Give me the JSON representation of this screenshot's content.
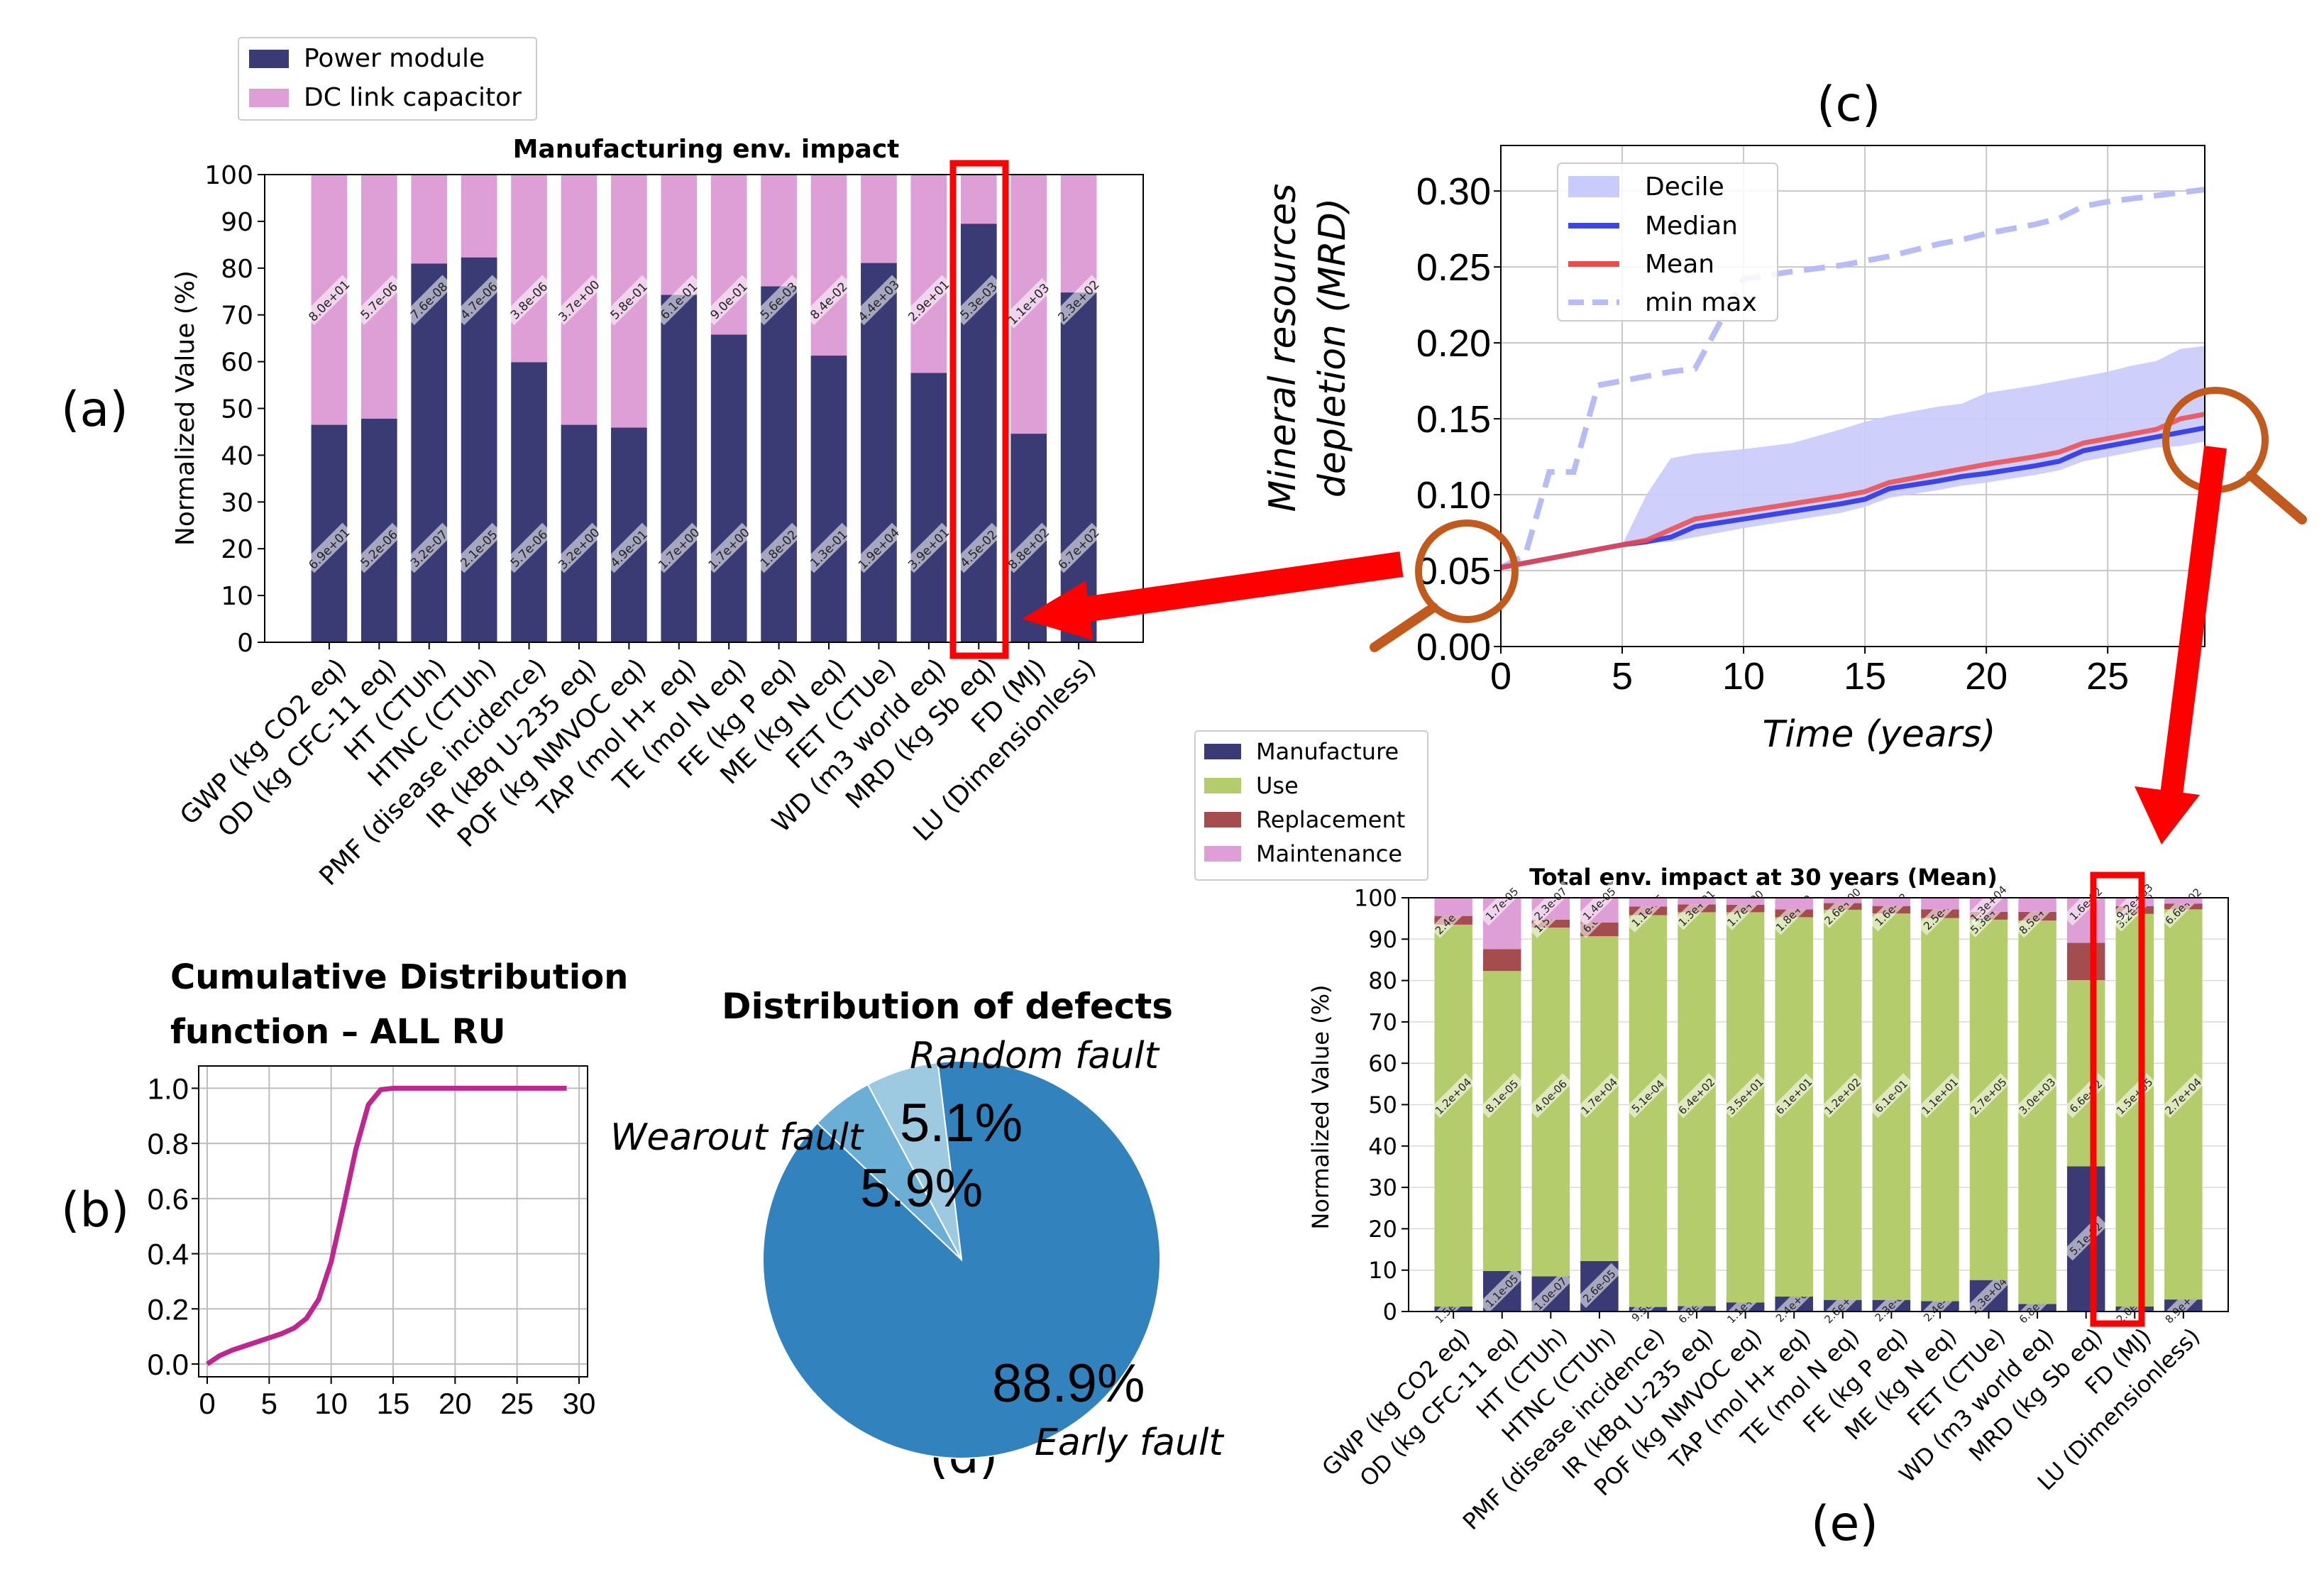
{
  "panel_labels": [
    "(a)",
    "(b)",
    "(c)",
    "(d)",
    "(e)"
  ],
  "colors": {
    "manufacture": "#3a3b74",
    "use": "#b5cc6c",
    "replacement": "#a44d4f",
    "maintenance": "#de9fd6",
    "decile": "#c9cbfb",
    "median": "#3d45e8",
    "mean": "#ef4a4a",
    "minmax": "#b8bcf6",
    "cdf": "#c02690",
    "pie_main": "#3282bd",
    "pie_second": "#6baed6",
    "pie_third": "#9ecae1",
    "highlight": "#ff0000",
    "magnifier": "#c25a1d"
  },
  "chart_data": [
    {
      "id": "a",
      "type": "bar",
      "stacked": true,
      "title": "Manufacturing env. impact",
      "ylabel": "Normalized Value (%)",
      "ylim": [
        0,
        100
      ],
      "yticks": [
        "0",
        "10",
        "20",
        "30",
        "40",
        "50",
        "60",
        "70",
        "80",
        "90",
        "100"
      ],
      "legend_position": "top-left",
      "categories": [
        "GWP (kg CO2 eq)",
        "OD (kg CFC-11 eq)",
        "HT (CTUh)",
        "HTNC (CTUh)",
        "PMF (disease incidence)",
        "IR (kBq U-235 eq)",
        "POF (kg NMVOC eq)",
        "TAP (mol H+ eq)",
        "TE (mol N eq)",
        "FE (kg P eq)",
        "ME (kg N eq)",
        "FET (CTUe)",
        "WD (m3 world eq)",
        "MRD (kg Sb eq)",
        "FD (MJ)",
        "LU (Dimensionless)"
      ],
      "highlight_category": "MRD (kg Sb eq)",
      "series": [
        {
          "name": "Power module",
          "values": [
            46.5,
            47.8,
            81,
            82.3,
            59.9,
            46.5,
            45.9,
            74.3,
            65.8,
            76.1,
            61.3,
            81.1,
            57.6,
            89.5,
            44.6,
            74.8
          ],
          "labels": [
            "6.9e+01",
            "5.2e-06",
            "3.2e-07",
            "2.1e-05",
            "5.7e-06",
            "3.2e+00",
            "4.9e-01",
            "1.7e+00",
            "1.7e+00",
            "1.8e-02",
            "1.3e-01",
            "1.9e+04",
            "3.9e+01",
            "4.5e-02",
            "8.8e+02",
            "6.7e+02"
          ]
        },
        {
          "name": "DC link capacitor",
          "values": [
            53.5,
            52.2,
            19,
            17.7,
            40.1,
            53.5,
            54.1,
            25.7,
            34.2,
            23.9,
            38.7,
            18.9,
            42.4,
            10.5,
            55.4,
            25.2
          ],
          "labels": [
            "8.0e+01",
            "5.7e-06",
            "7.6e-08",
            "4.7e-06",
            "3.8e-06",
            "3.7e+00",
            "5.8e-01",
            "6.1e-01",
            "9.0e-01",
            "5.6e-03",
            "8.4e-02",
            "4.4e+03",
            "2.9e+01",
            "5.3e-03",
            "1.1e+03",
            "2.3e+02"
          ]
        }
      ]
    },
    {
      "id": "b",
      "type": "line",
      "title": "Cumulative Distribution function – ALL RU",
      "title_lines": [
        "Cumulative Distribution",
        "function – ALL RU"
      ],
      "xlim": [
        0,
        30
      ],
      "ylim": [
        0,
        1.05
      ],
      "xticks": [
        "0",
        "5",
        "10",
        "15",
        "20",
        "25",
        "30"
      ],
      "yticks": [
        "0.0",
        "0.2",
        "0.4",
        "0.6",
        "0.8",
        "1.0"
      ],
      "grid": true,
      "x": [
        0,
        1,
        2,
        3,
        4,
        5,
        6,
        7,
        8,
        9,
        10,
        11,
        12,
        13,
        14,
        15,
        16,
        18,
        20,
        22,
        24,
        26,
        28,
        29
      ],
      "y": [
        0.0,
        0.03,
        0.05,
        0.065,
        0.08,
        0.095,
        0.11,
        0.13,
        0.165,
        0.235,
        0.37,
        0.57,
        0.78,
        0.94,
        0.995,
        1.0,
        1.0,
        1.0,
        1.0,
        1.0,
        1.0,
        1.0,
        1.0,
        1.0
      ]
    },
    {
      "id": "c",
      "type": "line",
      "xlabel": "Time (years)",
      "ylabel": "Mineral resources depletion (MRD)",
      "ylabel_lines": [
        "Mineral resources",
        "depletion (MRD)"
      ],
      "xlim": [
        0,
        29
      ],
      "ylim": [
        0,
        0.33
      ],
      "xticks": [
        "0",
        "5",
        "10",
        "15",
        "20",
        "25"
      ],
      "yticks": [
        "0.00",
        "0.05",
        "0.10",
        "0.15",
        "0.20",
        "0.25",
        "0.30"
      ],
      "grid": true,
      "legend_position": "top-left",
      "x": [
        0,
        1,
        2,
        3,
        4,
        5,
        6,
        7,
        8,
        10,
        12,
        14,
        15,
        16,
        18,
        19,
        20,
        22,
        23,
        24,
        25,
        26,
        27,
        28,
        29
      ],
      "series": [
        {
          "name": "Median",
          "values": [
            0.052,
            0.055,
            0.058,
            0.061,
            0.064,
            0.067,
            0.069,
            0.072,
            0.079,
            0.084,
            0.089,
            0.094,
            0.097,
            0.104,
            0.109,
            0.112,
            0.114,
            0.119,
            0.122,
            0.129,
            0.132,
            0.135,
            0.138,
            0.141,
            0.144
          ]
        },
        {
          "name": "Mean",
          "values": [
            0.052,
            0.055,
            0.058,
            0.061,
            0.064,
            0.067,
            0.07,
            0.077,
            0.084,
            0.089,
            0.094,
            0.099,
            0.102,
            0.108,
            0.114,
            0.117,
            0.12,
            0.125,
            0.128,
            0.134,
            0.137,
            0.14,
            0.143,
            0.15,
            0.153
          ]
        },
        {
          "name": "Decile",
          "lower": [
            0.052,
            0.055,
            0.058,
            0.061,
            0.064,
            0.067,
            0.068,
            0.069,
            0.072,
            0.078,
            0.083,
            0.088,
            0.092,
            0.098,
            0.103,
            0.106,
            0.108,
            0.113,
            0.116,
            0.122,
            0.125,
            0.128,
            0.131,
            0.132,
            0.135
          ],
          "upper": [
            0.052,
            0.055,
            0.058,
            0.061,
            0.064,
            0.067,
            0.1,
            0.124,
            0.127,
            0.13,
            0.134,
            0.143,
            0.148,
            0.152,
            0.158,
            0.16,
            0.167,
            0.172,
            0.175,
            0.178,
            0.181,
            0.185,
            0.188,
            0.196,
            0.198
          ]
        },
        {
          "name": "min max",
          "values": [
            0.052,
            0.06,
            0.115,
            0.115,
            0.172,
            0.175,
            0.178,
            0.181,
            0.183,
            0.242,
            0.247,
            0.251,
            0.254,
            0.257,
            0.265,
            0.268,
            0.272,
            0.278,
            0.282,
            0.29,
            0.293,
            0.295,
            0.297,
            0.299,
            0.301
          ]
        }
      ]
    },
    {
      "id": "d",
      "type": "pie",
      "title": "Distribution of defects",
      "labels": [
        "Early fault",
        "Random fault",
        "Wearout fault"
      ],
      "values": [
        88.9,
        5.1,
        5.9
      ],
      "value_labels": [
        "88.9%",
        "5.1%",
        "5.9%"
      ]
    },
    {
      "id": "e",
      "type": "bar",
      "stacked": true,
      "title": "Total env. impact at 30 years (Mean)",
      "ylabel": "Normalized Value (%)",
      "ylim": [
        0,
        100
      ],
      "yticks": [
        "0",
        "10",
        "20",
        "30",
        "40",
        "50",
        "60",
        "70",
        "80",
        "90",
        "100"
      ],
      "legend_position": "top-left",
      "categories": [
        "GWP (kg CO2 eq)",
        "OD (kg CFC-11 eq)",
        "HT (CTUh)",
        "HTNC (CTUh)",
        "PMF (disease incidence)",
        "IR (kBq U-235 eq)",
        "POF (kg NMVOC eq)",
        "TAP (mol H+ eq)",
        "TE (mol N eq)",
        "FE (kg P eq)",
        "ME (kg N eq)",
        "FET (CTUe)",
        "WD (m3 world eq)",
        "MRD (kg Sb eq)",
        "FD (MJ)",
        "LU (Dimensionless)"
      ],
      "highlight_category": "MRD (kg Sb eq)",
      "series": [
        {
          "name": "Manufacture",
          "values": [
            1.2,
            9.8,
            8.5,
            12.2,
            1.1,
            1.3,
            2.2,
            3.6,
            2.8,
            2.8,
            2.5,
            7.6,
            1.8,
            35.1,
            1.2,
            2.9
          ],
          "labels": [
            "1.5e+02",
            "1.1e-05",
            "1.0e-07",
            "2.6e-05",
            "9.5e-06",
            "6.8e+00",
            "1.1e+00",
            "2.4e+00",
            "2.6e+00",
            "2.3e-02",
            "2.4e-01",
            "2.3e+04",
            "6.8e+01",
            "5.1e-02",
            "2.0e+03",
            "8.9e+02"
          ]
        },
        {
          "name": "Use",
          "values": [
            92.3,
            72.5,
            84.3,
            78.5,
            94.7,
            95.2,
            94.3,
            91.7,
            94.3,
            93.4,
            92.6,
            87.1,
            92.7,
            45.0,
            94.9,
            94.3
          ],
          "labels": [
            "1.2e+04",
            "8.1e-05",
            "4.0e-06",
            "1.7e+04",
            "5.1e-04",
            "6.4e+02",
            "3.5e+01",
            "6.1e+01",
            "1.2e+02",
            "6.1e-01",
            "1.1e+01",
            "2.7e+05",
            "3.0e+03",
            "6.6e-02",
            "1.5e+05",
            "2.7e+04"
          ]
        },
        {
          "name": "Replacement",
          "values": [
            2.1,
            5.3,
            1.9,
            3.3,
            2.1,
            1.9,
            1.8,
            1.9,
            1.6,
            1.8,
            2.1,
            1.9,
            2.1,
            9.0,
            1.9,
            1.4
          ],
          "labels": [
            "2.4e+02",
            "2.8e-06",
            "1.5e-07",
            "6.6e-06",
            "1.1e-05",
            "1.3e+01",
            "1.7e+00",
            "1.8e+00",
            "2.6e+00",
            "1.6e-02",
            "2.5e-01",
            "5.3e+03",
            "8.5e+01",
            "1.3e-02",
            "3.2e+03",
            "6.6e+02"
          ]
        },
        {
          "name": "Maintenance",
          "values": [
            4.4,
            12.4,
            5.3,
            6.0,
            2.1,
            1.6,
            1.7,
            2.8,
            1.3,
            2.0,
            2.8,
            3.4,
            3.4,
            10.9,
            2.0,
            1.4
          ],
          "labels": [
            "",
            "1.7e-05",
            "2.3e-07",
            "1.4e-05",
            "",
            "",
            "",
            "",
            "",
            "",
            "",
            "1.3e+04",
            "",
            "1.6e-02",
            "9.2e+03",
            ""
          ]
        }
      ]
    }
  ]
}
